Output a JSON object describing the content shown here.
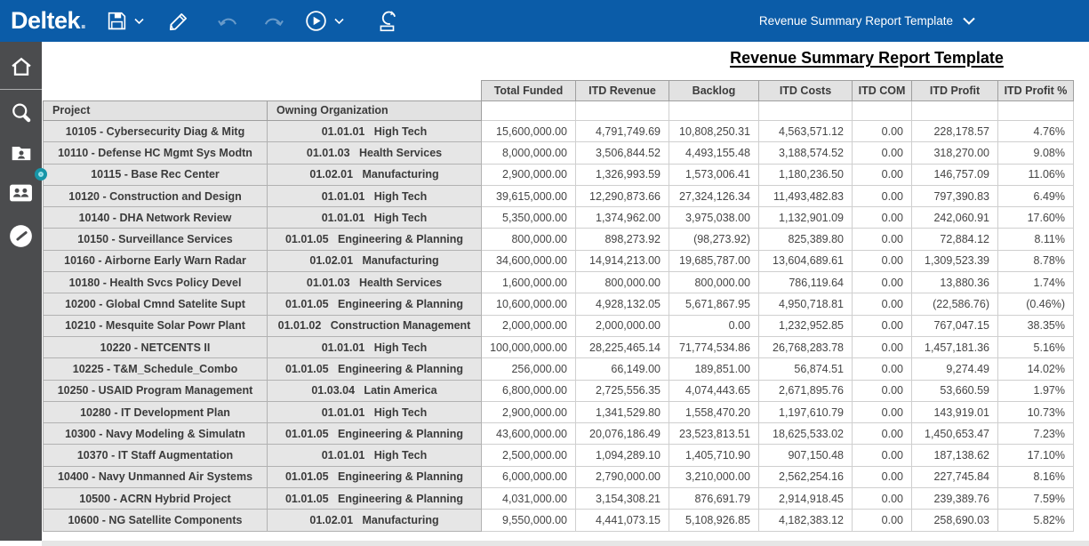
{
  "topbar": {
    "logo": "Deltek",
    "logo_dot": ".",
    "template_selector": {
      "label": "Revenue Summary Report Template"
    },
    "icons": [
      "save-icon",
      "chevron-down-icon",
      "edit-pencil-icon",
      "undo-icon",
      "redo-icon",
      "run-play-icon",
      "chevron-down-icon",
      "export-icon"
    ]
  },
  "sidebar": {
    "icons": [
      "home-icon",
      "search-icon",
      "employee-folder-icon",
      "people-icon",
      "clock-icon"
    ]
  },
  "report": {
    "title": "Revenue Summary Report Template"
  },
  "table": {
    "label_headers": [
      "Project",
      "Owning Organization"
    ],
    "value_headers": [
      "Total Funded",
      "ITD Revenue",
      "Backlog",
      "ITD Costs",
      "ITD COM",
      "ITD Profit",
      "ITD Profit %"
    ],
    "rows": [
      {
        "project": "10105 - Cybersecurity Diag & Mitg",
        "org": "01.01.01   High Tech",
        "values": [
          "15,600,000.00",
          "4,791,749.69",
          "10,808,250.31",
          "4,563,571.12",
          "0.00",
          "228,178.57",
          "4.76%"
        ]
      },
      {
        "project": "10110 - Defense HC Mgmt Sys Modtn",
        "org": "01.01.03   Health Services",
        "values": [
          "8,000,000.00",
          "3,506,844.52",
          "4,493,155.48",
          "3,188,574.52",
          "0.00",
          "318,270.00",
          "9.08%"
        ]
      },
      {
        "project": "10115 - Base Rec Center",
        "org": "01.02.01   Manufacturing",
        "values": [
          "2,900,000.00",
          "1,326,993.59",
          "1,573,006.41",
          "1,180,236.50",
          "0.00",
          "146,757.09",
          "11.06%"
        ]
      },
      {
        "project": "10120 - Construction and Design",
        "org": "01.01.01   High Tech",
        "values": [
          "39,615,000.00",
          "12,290,873.66",
          "27,324,126.34",
          "11,493,482.83",
          "0.00",
          "797,390.83",
          "6.49%"
        ]
      },
      {
        "project": "10140 - DHA Network Review",
        "org": "01.01.01   High Tech",
        "values": [
          "5,350,000.00",
          "1,374,962.00",
          "3,975,038.00",
          "1,132,901.09",
          "0.00",
          "242,060.91",
          "17.60%"
        ]
      },
      {
        "project": "10150 - Surveillance Services",
        "org": "01.01.05   Engineering & Planning",
        "values": [
          "800,000.00",
          "898,273.92",
          "(98,273.92)",
          "825,389.80",
          "0.00",
          "72,884.12",
          "8.11%"
        ]
      },
      {
        "project": "10160 - Airborne Early Warn Radar",
        "org": "01.02.01   Manufacturing",
        "values": [
          "34,600,000.00",
          "14,914,213.00",
          "19,685,787.00",
          "13,604,689.61",
          "0.00",
          "1,309,523.39",
          "8.78%"
        ]
      },
      {
        "project": "10180 - Health Svcs Policy Devel",
        "org": "01.01.03   Health Services",
        "values": [
          "1,600,000.00",
          "800,000.00",
          "800,000.00",
          "786,119.64",
          "0.00",
          "13,880.36",
          "1.74%"
        ]
      },
      {
        "project": "10200 - Global Cmnd Satelite Supt",
        "org": "01.01.05   Engineering & Planning",
        "values": [
          "10,600,000.00",
          "4,928,132.05",
          "5,671,867.95",
          "4,950,718.81",
          "0.00",
          "(22,586.76)",
          "(0.46%)"
        ]
      },
      {
        "project": "10210 - Mesquite Solar Powr Plant",
        "org": "01.01.02   Construction Management",
        "values": [
          "2,000,000.00",
          "2,000,000.00",
          "0.00",
          "1,232,952.85",
          "0.00",
          "767,047.15",
          "38.35%"
        ]
      },
      {
        "project": "10220 - NETCENTS II",
        "org": "01.01.01   High Tech",
        "values": [
          "100,000,000.00",
          "28,225,465.14",
          "71,774,534.86",
          "26,768,283.78",
          "0.00",
          "1,457,181.36",
          "5.16%"
        ]
      },
      {
        "project": "10225 - T&M_Schedule_Combo",
        "org": "01.01.05   Engineering & Planning",
        "values": [
          "256,000.00",
          "66,149.00",
          "189,851.00",
          "56,874.51",
          "0.00",
          "9,274.49",
          "14.02%"
        ]
      },
      {
        "project": "10250 - USAID Program Management",
        "org": "01.03.04   Latin America",
        "values": [
          "6,800,000.00",
          "2,725,556.35",
          "4,074,443.65",
          "2,671,895.76",
          "0.00",
          "53,660.59",
          "1.97%"
        ]
      },
      {
        "project": "10280 - IT Development Plan",
        "org": "01.01.01   High Tech",
        "values": [
          "2,900,000.00",
          "1,341,529.80",
          "1,558,470.20",
          "1,197,610.79",
          "0.00",
          "143,919.01",
          "10.73%"
        ]
      },
      {
        "project": "10300 - Navy Modeling & Simulatn",
        "org": "01.01.05   Engineering & Planning",
        "values": [
          "43,600,000.00",
          "20,076,186.49",
          "23,523,813.51",
          "18,625,533.02",
          "0.00",
          "1,450,653.47",
          "7.23%"
        ]
      },
      {
        "project": "10370 - IT Staff Augmentation",
        "org": "01.01.01   High Tech",
        "values": [
          "2,500,000.00",
          "1,094,289.10",
          "1,405,710.90",
          "907,150.48",
          "0.00",
          "187,138.62",
          "17.10%"
        ]
      },
      {
        "project": "10400 - Navy Unmanned Air Systems",
        "org": "01.01.05   Engineering & Planning",
        "values": [
          "6,000,000.00",
          "2,790,000.00",
          "3,210,000.00",
          "2,562,254.16",
          "0.00",
          "227,745.84",
          "8.16%"
        ]
      },
      {
        "project": "10500 - ACRN Hybrid Project",
        "org": "01.01.05   Engineering & Planning",
        "values": [
          "4,031,000.00",
          "3,154,308.21",
          "876,691.79",
          "2,914,918.45",
          "0.00",
          "239,389.76",
          "7.59%"
        ]
      },
      {
        "project": "10600 - NG Satellite Components",
        "org": "01.02.01   Manufacturing",
        "values": [
          "9,550,000.00",
          "4,441,073.15",
          "5,108,926.85",
          "4,182,383.12",
          "0.00",
          "258,690.03",
          "5.82%"
        ]
      }
    ]
  },
  "colors": {
    "topbar_blue": "#0b5ca8",
    "sidebar_gray": "#4b4c4e",
    "header_gray": "#e2e2e2",
    "label_cell_gray": "#e6e6e6",
    "accent_teal": "#1795a7"
  }
}
